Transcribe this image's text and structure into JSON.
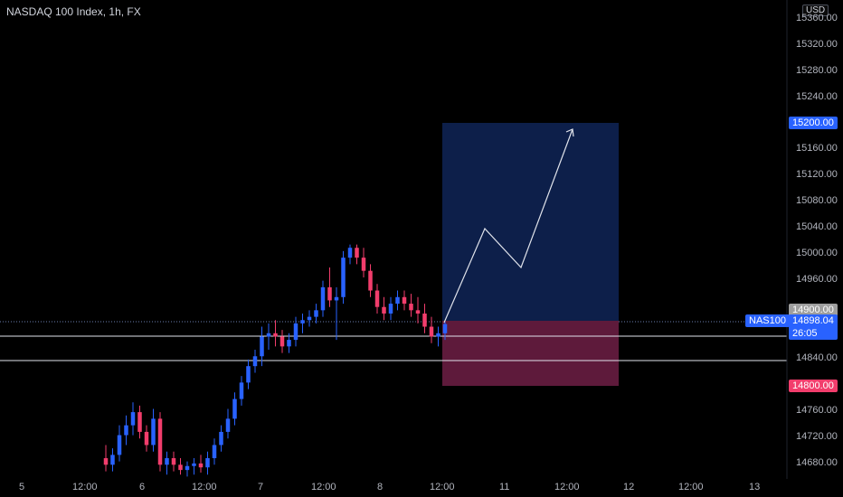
{
  "chart_title": "NASDAQ 100 Index, 1h, FX",
  "currency_button": "USD",
  "price_axis": {
    "ticks": [
      "15360.00",
      "15320.00",
      "15280.00",
      "15240.00",
      "15160.00",
      "15120.00",
      "15080.00",
      "15040.00",
      "15000.00",
      "14960.00",
      "14840.00",
      "14760.00",
      "14720.00",
      "14680.00"
    ]
  },
  "time_axis": {
    "ticks": [
      "5",
      "12:00",
      "6",
      "12:00",
      "7",
      "12:00",
      "8",
      "12:00",
      "11",
      "12:00",
      "12",
      "12:00",
      "13"
    ]
  },
  "price_tags": {
    "target": "15200.00",
    "entry": "14900.00",
    "stop": "14800.00",
    "symbol": "NAS100",
    "last_price": "14898.04",
    "countdown": "26:05"
  },
  "colors": {
    "background": "#000000",
    "up_candle": "#2962ff",
    "down_candle": "#f23d6c",
    "target_zone": "#0d1f4a",
    "stop_zone": "#5e1a3b",
    "target_tag": "#2962ff",
    "stop_tag": "#f23d6c",
    "entry_tag": "#9e9e9e"
  },
  "chart_data": {
    "type": "candlestick",
    "title": "NASDAQ 100 Index, 1h, FX",
    "ylim": [
      14660,
      15370
    ],
    "candles": [
      [
        14690,
        14710,
        14670,
        14680
      ],
      [
        14680,
        14705,
        14670,
        14695
      ],
      [
        14695,
        14740,
        14685,
        14725
      ],
      [
        14725,
        14755,
        14710,
        14740
      ],
      [
        14740,
        14775,
        14725,
        14760
      ],
      [
        14760,
        14770,
        14720,
        14730
      ],
      [
        14730,
        14740,
        14700,
        14710
      ],
      [
        14710,
        14765,
        14700,
        14750
      ],
      [
        14750,
        14760,
        14670,
        14680
      ],
      [
        14680,
        14700,
        14665,
        14690
      ],
      [
        14690,
        14700,
        14670,
        14680
      ],
      [
        14680,
        14690,
        14665,
        14672
      ],
      [
        14672,
        14685,
        14662,
        14678
      ],
      [
        14678,
        14690,
        14665,
        14682
      ],
      [
        14682,
        14695,
        14668,
        14676
      ],
      [
        14676,
        14700,
        14665,
        14690
      ],
      [
        14690,
        14720,
        14680,
        14710
      ],
      [
        14710,
        14740,
        14700,
        14730
      ],
      [
        14730,
        14765,
        14720,
        14750
      ],
      [
        14750,
        14790,
        14740,
        14780
      ],
      [
        14780,
        14815,
        14770,
        14805
      ],
      [
        14805,
        14840,
        14795,
        14830
      ],
      [
        14830,
        14855,
        14820,
        14845
      ],
      [
        14845,
        14890,
        14830,
        14875
      ],
      [
        14875,
        14895,
        14855,
        14880
      ],
      [
        14880,
        14900,
        14860,
        14875
      ],
      [
        14875,
        14885,
        14850,
        14860
      ],
      [
        14860,
        14880,
        14850,
        14870
      ],
      [
        14870,
        14905,
        14860,
        14895
      ],
      [
        14895,
        14910,
        14880,
        14900
      ],
      [
        14900,
        14915,
        14890,
        14905
      ],
      [
        14905,
        14925,
        14895,
        14915
      ],
      [
        14915,
        14960,
        14905,
        14950
      ],
      [
        14950,
        14980,
        14920,
        14930
      ],
      [
        14930,
        14950,
        14870,
        14935
      ],
      [
        14935,
        15005,
        14925,
        14995
      ],
      [
        14995,
        15015,
        14985,
        15010
      ],
      [
        15010,
        15015,
        14985,
        14995
      ],
      [
        14995,
        15010,
        14965,
        14975
      ],
      [
        14975,
        14985,
        14935,
        14945
      ],
      [
        14945,
        14955,
        14910,
        14920
      ],
      [
        14920,
        14935,
        14900,
        14910
      ],
      [
        14910,
        14935,
        14900,
        14925
      ],
      [
        14925,
        14945,
        14915,
        14935
      ],
      [
        14935,
        14945,
        14915,
        14925
      ],
      [
        14925,
        14940,
        14905,
        14915
      ],
      [
        14915,
        14935,
        14895,
        14910
      ],
      [
        14910,
        14925,
        14880,
        14890
      ],
      [
        14890,
        14905,
        14865,
        14875
      ],
      [
        14875,
        14890,
        14860,
        14880
      ],
      [
        14880,
        14898,
        14870,
        14894
      ]
    ]
  }
}
